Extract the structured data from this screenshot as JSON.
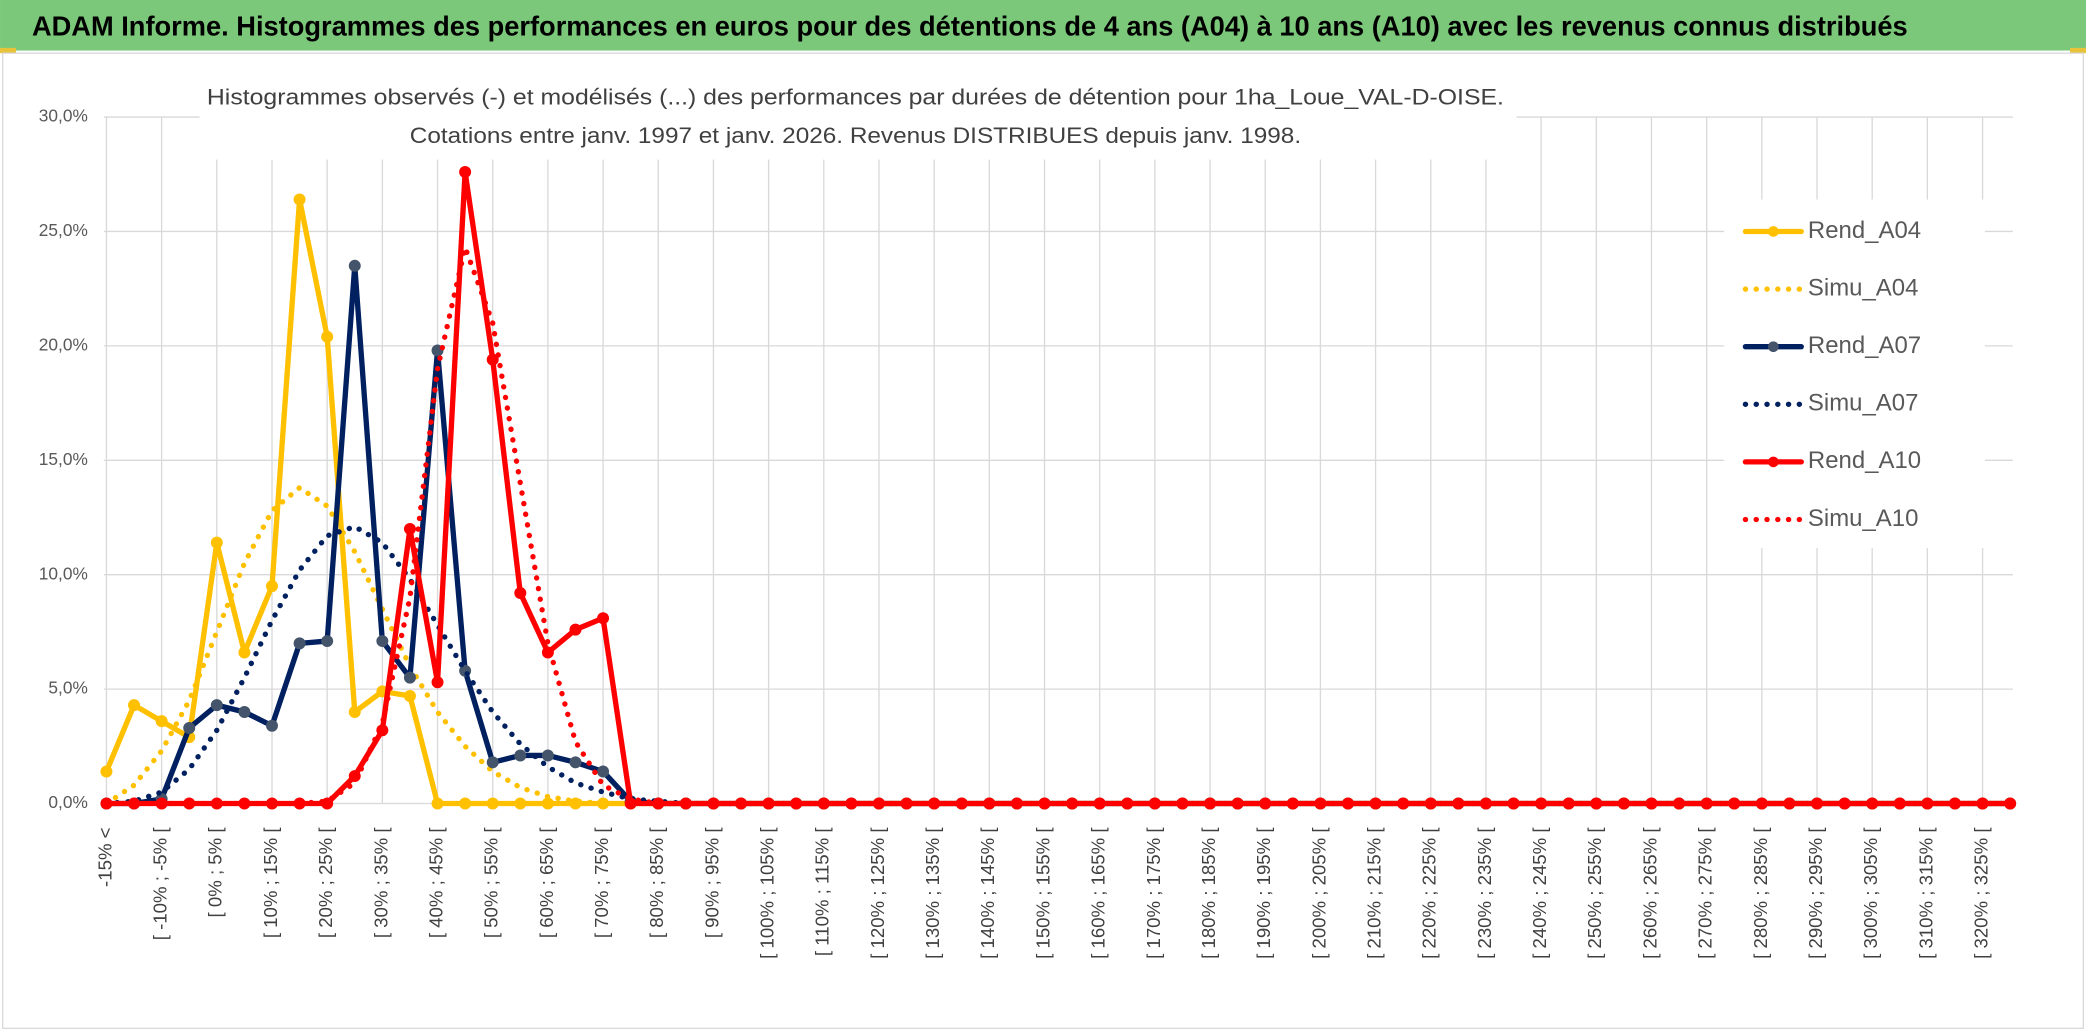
{
  "chart_data": {
    "type": "line",
    "header": "ADAM Informe. Histogrammes des performances en euros pour des détentions de 4 ans (A04) à 10 ans (A10) avec les revenus connus distribués",
    "title": [
      "Histogrammes observés (-) et modélisés (...) des performances par durées de détention pour 1ha_Loue_VAL-D-OISE.",
      "Cotations entre janv. 1997 et janv. 2026. Revenus DISTRIBUES depuis janv. 1998."
    ],
    "categories": [
      "-15% <",
      null,
      "[ -10% ; -5% [",
      null,
      "[ 0% ; 5% [",
      null,
      "[ 10% ; 15% [",
      null,
      "[ 20% ; 25% [",
      null,
      "[ 30% ; 35% [",
      null,
      "[ 40% ; 45% [",
      null,
      "[ 50% ; 55% [",
      null,
      "[ 60% ; 65% [",
      null,
      "[ 70% ; 75% [",
      null,
      "[ 80% ; 85% [",
      null,
      "[ 90% ; 95% [",
      null,
      "[ 100% ; 105% [",
      null,
      "[ 110% ; 115% [",
      null,
      "[ 120% ; 125% [",
      null,
      "[ 130% ; 135% [",
      null,
      "[ 140% ; 145% [",
      null,
      "[ 150% ; 155% [",
      null,
      "[ 160% ; 165% [",
      null,
      "[ 170% ; 175% [",
      null,
      "[ 180% ; 185% [",
      null,
      "[ 190% ; 195% [",
      null,
      "[ 200% ; 205% [",
      null,
      "[ 210% ; 215% [",
      null,
      "[ 220% ; 225% [",
      null,
      "[ 230% ; 235% [",
      null,
      "[ 240% ; 245% [",
      null,
      "[ 250% ; 255% [",
      null,
      "[ 260% ; 265% [",
      null,
      "[ 270% ; 275% [",
      null,
      "[ 280% ; 285% [",
      null,
      "[ 290% ; 295% [",
      null,
      "[ 300% ; 305% [",
      null,
      "[ 310% ; 315% [",
      null,
      "[ 320% ; 325% [",
      null
    ],
    "ylim": [
      0,
      30
    ],
    "yticks": [
      {
        "value": 0,
        "label": "0,0%"
      },
      {
        "value": 5,
        "label": "5,0%"
      },
      {
        "value": 10,
        "label": "10,0%"
      },
      {
        "value": 15,
        "label": "15,0%"
      },
      {
        "value": 20,
        "label": "20,0%"
      },
      {
        "value": 25,
        "label": "25,0%"
      },
      {
        "value": 30,
        "label": "30,0%"
      }
    ],
    "grid": true,
    "legend": "right",
    "series": [
      {
        "name": "Rend_A04",
        "color": "#FFC000",
        "style": "solid",
        "markers": true,
        "values": [
          1.4,
          4.3,
          3.6,
          2.9,
          11.4,
          6.6,
          9.5,
          26.4,
          20.4,
          4.0,
          4.9,
          4.7,
          0,
          0,
          0,
          0,
          0,
          0,
          0,
          0,
          0,
          0,
          0,
          0,
          0,
          0,
          0,
          0,
          0,
          0,
          0,
          0,
          0,
          0,
          0,
          0,
          0,
          0,
          0,
          0,
          0,
          0,
          0,
          0,
          0,
          0,
          0,
          0,
          0,
          0,
          0,
          0,
          0,
          0,
          0,
          0,
          0,
          0,
          0,
          0,
          0,
          0,
          0,
          0,
          0,
          0,
          0,
          0,
          0,
          0
        ]
      },
      {
        "name": "Simu_A04",
        "color": "#FFC000",
        "style": "dotted",
        "markers": false,
        "values": [
          0,
          0.8,
          2.3,
          4.5,
          7.5,
          10.5,
          12.8,
          13.8,
          13.0,
          11.0,
          8.5,
          6.0,
          4.0,
          2.5,
          1.4,
          0.7,
          0.3,
          0.1,
          0,
          0,
          0,
          0,
          0,
          0,
          0,
          0,
          0,
          0,
          0,
          0,
          0,
          0,
          0,
          0,
          0,
          0,
          0,
          0,
          0,
          0,
          0,
          0,
          0,
          0,
          0,
          0,
          0,
          0,
          0,
          0,
          0,
          0,
          0,
          0,
          0,
          0,
          0,
          0,
          0,
          0,
          0,
          0,
          0,
          0,
          0,
          0,
          0,
          0,
          0,
          0
        ]
      },
      {
        "name": "Rend_A07",
        "color": "#002060",
        "style": "solid",
        "markers": true,
        "values": [
          0,
          0,
          0.2,
          3.3,
          4.3,
          4.0,
          3.4,
          7.0,
          7.1,
          23.5,
          7.1,
          5.5,
          19.8,
          5.8,
          1.8,
          2.1,
          2.1,
          1.8,
          1.4,
          0.1,
          0,
          0,
          0,
          0,
          0,
          0,
          0,
          0,
          0,
          0,
          0,
          0,
          0,
          0,
          0,
          0,
          0,
          0,
          0,
          0,
          0,
          0,
          0,
          0,
          0,
          0,
          0,
          0,
          0,
          0,
          0,
          0,
          0,
          0,
          0,
          0,
          0,
          0,
          0,
          0,
          0,
          0,
          0,
          0,
          0,
          0,
          0,
          0,
          0,
          0
        ]
      },
      {
        "name": "Simu_A07",
        "color": "#002060",
        "style": "dotted",
        "markers": false,
        "values": [
          0,
          0.1,
          0.5,
          1.5,
          3.2,
          5.5,
          8.0,
          10.2,
          11.7,
          12.1,
          11.4,
          9.8,
          7.8,
          5.8,
          4.0,
          2.6,
          1.6,
          0.9,
          0.5,
          0.2,
          0.1,
          0,
          0,
          0,
          0,
          0,
          0,
          0,
          0,
          0,
          0,
          0,
          0,
          0,
          0,
          0,
          0,
          0,
          0,
          0,
          0,
          0,
          0,
          0,
          0,
          0,
          0,
          0,
          0,
          0,
          0,
          0,
          0,
          0,
          0,
          0,
          0,
          0,
          0,
          0,
          0,
          0,
          0,
          0,
          0,
          0,
          0,
          0,
          0,
          0
        ]
      },
      {
        "name": "Rend_A10",
        "color": "#FF0000",
        "style": "solid",
        "markers": true,
        "values": [
          0,
          0,
          0,
          0,
          0,
          0,
          0,
          0,
          0,
          1.2,
          3.2,
          12.0,
          5.3,
          27.6,
          19.4,
          9.2,
          6.6,
          7.6,
          8.1,
          0,
          0,
          0,
          0,
          0,
          0,
          0,
          0,
          0,
          0,
          0,
          0,
          0,
          0,
          0,
          0,
          0,
          0,
          0,
          0,
          0,
          0,
          0,
          0,
          0,
          0,
          0,
          0,
          0,
          0,
          0,
          0,
          0,
          0,
          0,
          0,
          0,
          0,
          0,
          0,
          0,
          0,
          0,
          0,
          0,
          0,
          0,
          0,
          0,
          0,
          0
        ]
      },
      {
        "name": "Simu_A10",
        "color": "#FF0000",
        "style": "dotted",
        "markers": false,
        "values": [
          0,
          0,
          0,
          0,
          0,
          0,
          0,
          0,
          0.1,
          0.9,
          3.5,
          9.0,
          19.0,
          24.3,
          21.0,
          14.0,
          7.0,
          2.7,
          0.8,
          0.2,
          0,
          0,
          0,
          0,
          0,
          0,
          0,
          0,
          0,
          0,
          0,
          0,
          0,
          0,
          0,
          0,
          0,
          0,
          0,
          0,
          0,
          0,
          0,
          0,
          0,
          0,
          0,
          0,
          0,
          0,
          0,
          0,
          0,
          0,
          0,
          0,
          0,
          0,
          0,
          0,
          0,
          0,
          0,
          0,
          0,
          0,
          0,
          0,
          0,
          0
        ]
      }
    ]
  }
}
